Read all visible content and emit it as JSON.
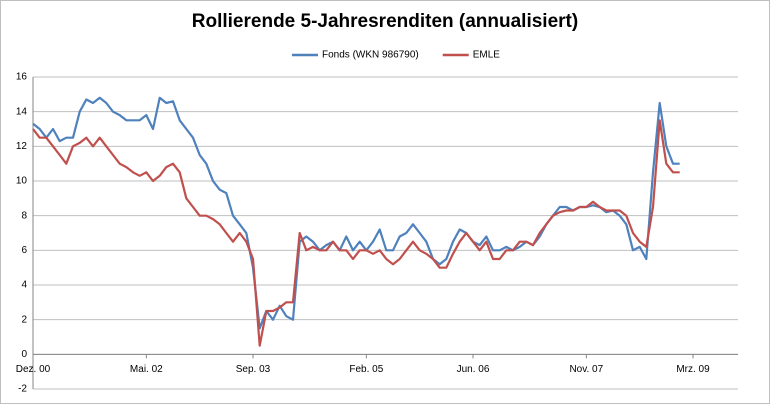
{
  "chart_data": {
    "type": "line",
    "title": "Rollierende 5-Jahresrenditen (annualisiert)",
    "categories": [
      "Dez. 00",
      null,
      null,
      null,
      null,
      null,
      null,
      null,
      null,
      null,
      null,
      null,
      null,
      null,
      null,
      null,
      null,
      "Mai. 02",
      null,
      null,
      null,
      null,
      null,
      null,
      null,
      null,
      null,
      null,
      null,
      null,
      null,
      null,
      null,
      "Sep. 03",
      null,
      null,
      null,
      null,
      null,
      null,
      null,
      null,
      null,
      null,
      null,
      null,
      null,
      null,
      null,
      null,
      "Feb. 05",
      null,
      null,
      null,
      null,
      null,
      null,
      null,
      null,
      null,
      null,
      null,
      null,
      null,
      null,
      null,
      "Jun. 06",
      null,
      null,
      null,
      null,
      null,
      null,
      null,
      null,
      null,
      null,
      null,
      null,
      null,
      null,
      null,
      null,
      "Nov. 07",
      null,
      null,
      null,
      null,
      null,
      null,
      null,
      null,
      null,
      null,
      null,
      null,
      null,
      null,
      null,
      "Mrz. 09"
    ],
    "series": [
      {
        "name": "Fonds (WKN 986790)",
        "color": "#4f81bd",
        "values": [
          13.3,
          13.0,
          12.5,
          13.0,
          12.3,
          12.5,
          12.5,
          14.0,
          14.7,
          14.5,
          14.8,
          14.5,
          14.0,
          13.8,
          13.5,
          13.5,
          13.5,
          13.8,
          13.0,
          14.8,
          14.5,
          14.6,
          13.5,
          13.0,
          12.5,
          11.5,
          11.0,
          10.0,
          9.5,
          9.3,
          8.0,
          7.5,
          7.0,
          5.0,
          1.5,
          2.5,
          2.0,
          2.8,
          2.2,
          2.0,
          6.5,
          6.8,
          6.5,
          6.0,
          6.3,
          6.5,
          6.0,
          6.8,
          6.0,
          6.5,
          6.0,
          6.5,
          7.2,
          6.0,
          6.0,
          6.8,
          7.0,
          7.5,
          7.0,
          6.5,
          5.5,
          5.2,
          5.5,
          6.5,
          7.2,
          7.0,
          6.5,
          6.3,
          6.8,
          6.0,
          6.0,
          6.2,
          6.0,
          6.2,
          6.5,
          6.3,
          6.8,
          7.5,
          8.0,
          8.5,
          8.5,
          8.3,
          8.5,
          8.5,
          8.6,
          8.5,
          8.2,
          8.3,
          8.0,
          7.5,
          6.0,
          6.2,
          5.5,
          10.5,
          14.5,
          12.0,
          11.0,
          11.0,
          null,
          null
        ]
      },
      {
        "name": "EMLE",
        "color": "#c0504d",
        "values": [
          13.0,
          12.5,
          12.5,
          12.0,
          11.5,
          11.0,
          12.0,
          12.2,
          12.5,
          12.0,
          12.5,
          12.0,
          11.5,
          11.0,
          10.8,
          10.5,
          10.3,
          10.5,
          10.0,
          10.3,
          10.8,
          11.0,
          10.5,
          9.0,
          8.5,
          8.0,
          8.0,
          7.8,
          7.5,
          7.0,
          6.5,
          7.0,
          6.5,
          5.5,
          0.5,
          2.5,
          2.5,
          2.7,
          3.0,
          3.0,
          7.0,
          6.0,
          6.2,
          6.0,
          6.0,
          6.5,
          6.0,
          6.0,
          5.5,
          6.0,
          6.0,
          5.8,
          6.0,
          5.5,
          5.2,
          5.5,
          6.0,
          6.5,
          6.0,
          5.8,
          5.5,
          5.0,
          5.0,
          5.8,
          6.5,
          7.0,
          6.5,
          6.0,
          6.5,
          5.5,
          5.5,
          6.0,
          6.0,
          6.5,
          6.5,
          6.3,
          7.0,
          7.5,
          8.0,
          8.2,
          8.3,
          8.3,
          8.5,
          8.5,
          8.8,
          8.5,
          8.3,
          8.3,
          8.3,
          8.0,
          7.0,
          6.5,
          6.2,
          8.5,
          13.5,
          11.0,
          10.5,
          10.5,
          null,
          null
        ]
      }
    ],
    "ylim": [
      -2,
      16
    ],
    "yticks": [
      -2,
      0,
      2,
      4,
      6,
      8,
      10,
      12,
      14,
      16
    ],
    "grid": true
  }
}
